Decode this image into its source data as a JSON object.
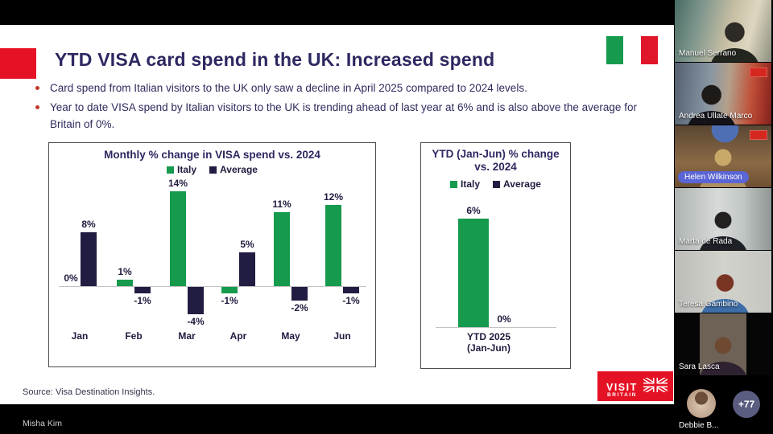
{
  "slide": {
    "title": "YTD VISA card spend in the UK: Increased spend",
    "bullets": [
      "Card spend from Italian visitors to the UK only saw a decline in April 2025 compared to 2024 levels.",
      "Year to date VISA spend by Italian visitors to the UK is trending ahead of last year at 6% and is also above the average for Britain of 0%."
    ],
    "source": "Source: Visa Destination Insights.",
    "logo": {
      "visit": "VISIT",
      "britain": "BRITAIN"
    }
  },
  "chart_data": [
    {
      "type": "bar",
      "title": "Monthly % change in VISA spend vs. 2024",
      "categories": [
        "Jan",
        "Feb",
        "Mar",
        "Apr",
        "May",
        "Jun"
      ],
      "series": [
        {
          "name": "Italy",
          "color": "#169a4e",
          "values": [
            0,
            1,
            14,
            -1,
            11,
            12
          ]
        },
        {
          "name": "Average",
          "color": "#211d42",
          "values": [
            8,
            -1,
            -4,
            5,
            -2,
            -1
          ]
        }
      ],
      "unit": "%",
      "data_labels": true,
      "legend_position": "top",
      "ylim": [
        -6,
        16
      ],
      "grid": false
    },
    {
      "type": "bar",
      "title": "YTD (Jan-Jun) % change vs. 2024",
      "categories": [
        "YTD 2025\n(Jan-Jun)"
      ],
      "series": [
        {
          "name": "Italy",
          "color": "#169a4e",
          "values": [
            6
          ]
        },
        {
          "name": "Average",
          "color": "#211d42",
          "values": [
            0
          ]
        }
      ],
      "unit": "%",
      "data_labels": true,
      "legend_position": "top",
      "ylim": [
        0,
        8
      ],
      "grid": false
    }
  ],
  "participants": {
    "list": [
      {
        "name": "Manuel Serrano"
      },
      {
        "name": "Andrea Ullate Marco"
      },
      {
        "name": "Helen Wilkinson"
      },
      {
        "name": "Marta de Rada"
      },
      {
        "name": "Teresa Gambino"
      },
      {
        "name": "Sara Lasca"
      },
      {
        "name": "Debbie B..."
      }
    ],
    "overflow": "+77",
    "active_speaker": "Helen Wilkinson"
  },
  "bottom_bar": {
    "label": "Misha Kim"
  },
  "colors": {
    "accent_red": "#e51225",
    "italy_green": "#169a4e",
    "average_navy": "#211d42",
    "title_navy": "#2d2861",
    "active_speaker_pill": "#5a65d6",
    "overflow_badge": "#5b5d80"
  }
}
